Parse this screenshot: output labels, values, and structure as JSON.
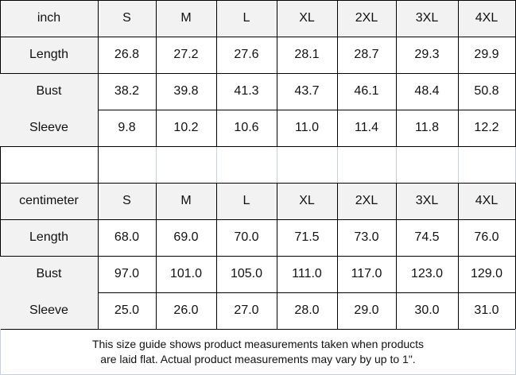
{
  "tables": [
    {
      "unit": "inch",
      "sizes": [
        "S",
        "M",
        "L",
        "XL",
        "2XL",
        "3XL",
        "4XL"
      ],
      "rows": [
        {
          "label": "Length",
          "values": [
            "26.8",
            "27.2",
            "27.6",
            "28.1",
            "28.7",
            "29.3",
            "29.9"
          ]
        },
        {
          "label": "Bust",
          "values": [
            "38.2",
            "39.8",
            "41.3",
            "43.7",
            "46.1",
            "48.4",
            "50.8"
          ]
        },
        {
          "label": "Sleeve",
          "values": [
            "9.8",
            "10.2",
            "10.6",
            "11.0",
            "11.4",
            "11.8",
            "12.2"
          ]
        }
      ]
    },
    {
      "unit": "centimeter",
      "sizes": [
        "S",
        "M",
        "L",
        "XL",
        "2XL",
        "3XL",
        "4XL"
      ],
      "rows": [
        {
          "label": "Length",
          "values": [
            "68.0",
            "69.0",
            "70.0",
            "71.5",
            "73.0",
            "74.5",
            "76.0"
          ]
        },
        {
          "label": "Bust",
          "values": [
            "97.0",
            "101.0",
            "105.0",
            "111.0",
            "117.0",
            "123.0",
            "129.0"
          ]
        },
        {
          "label": "Sleeve",
          "values": [
            "25.0",
            "26.0",
            "27.0",
            "28.0",
            "29.0",
            "30.0",
            "31.0"
          ]
        }
      ]
    }
  ],
  "footer": {
    "line1": "This size guide shows product measurements taken when products",
    "line2": "are laid flat. Actual product measurements may vary by up to 1\"."
  }
}
